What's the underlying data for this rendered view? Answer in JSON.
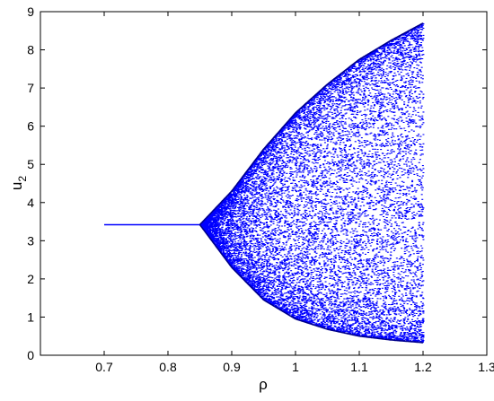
{
  "chart_data": {
    "type": "scatter",
    "title": "",
    "xlabel": "ρ",
    "ylabel_base": "u",
    "ylabel_subscript": "2",
    "xlim": [
      0.6,
      1.3
    ],
    "ylim": [
      0,
      9
    ],
    "x_ticks": [
      0.7,
      0.8,
      0.9,
      1,
      1.1,
      1.2,
      1.3
    ],
    "x_tick_labels": [
      "0.7",
      "0.8",
      "0.9",
      "1",
      "1.1",
      "1.2",
      "1.3"
    ],
    "y_ticks": [
      0,
      1,
      2,
      3,
      4,
      5,
      6,
      7,
      8,
      9
    ],
    "y_tick_labels": [
      "0",
      "1",
      "2",
      "3",
      "4",
      "5",
      "6",
      "7",
      "8",
      "9"
    ],
    "grid": false,
    "legend": "none",
    "series": [
      {
        "color": "#0000ff",
        "fixed_point": {
          "x_start": 0.7,
          "x_end": 0.85,
          "y": 3.42
        },
        "bifurcation_onset": 0.85,
        "x_end": 1.2,
        "upper_envelope": [
          {
            "x": 0.85,
            "y": 3.42
          },
          {
            "x": 0.9,
            "y": 4.3
          },
          {
            "x": 0.95,
            "y": 5.4
          },
          {
            "x": 1.0,
            "y": 6.35
          },
          {
            "x": 1.05,
            "y": 7.1
          },
          {
            "x": 1.1,
            "y": 7.75
          },
          {
            "x": 1.15,
            "y": 8.25
          },
          {
            "x": 1.2,
            "y": 8.7
          }
        ],
        "lower_envelope": [
          {
            "x": 0.85,
            "y": 3.42
          },
          {
            "x": 0.9,
            "y": 2.3
          },
          {
            "x": 0.95,
            "y": 1.45
          },
          {
            "x": 1.0,
            "y": 0.95
          },
          {
            "x": 1.05,
            "y": 0.68
          },
          {
            "x": 1.1,
            "y": 0.5
          },
          {
            "x": 1.15,
            "y": 0.4
          },
          {
            "x": 1.2,
            "y": 0.33
          }
        ]
      }
    ]
  }
}
